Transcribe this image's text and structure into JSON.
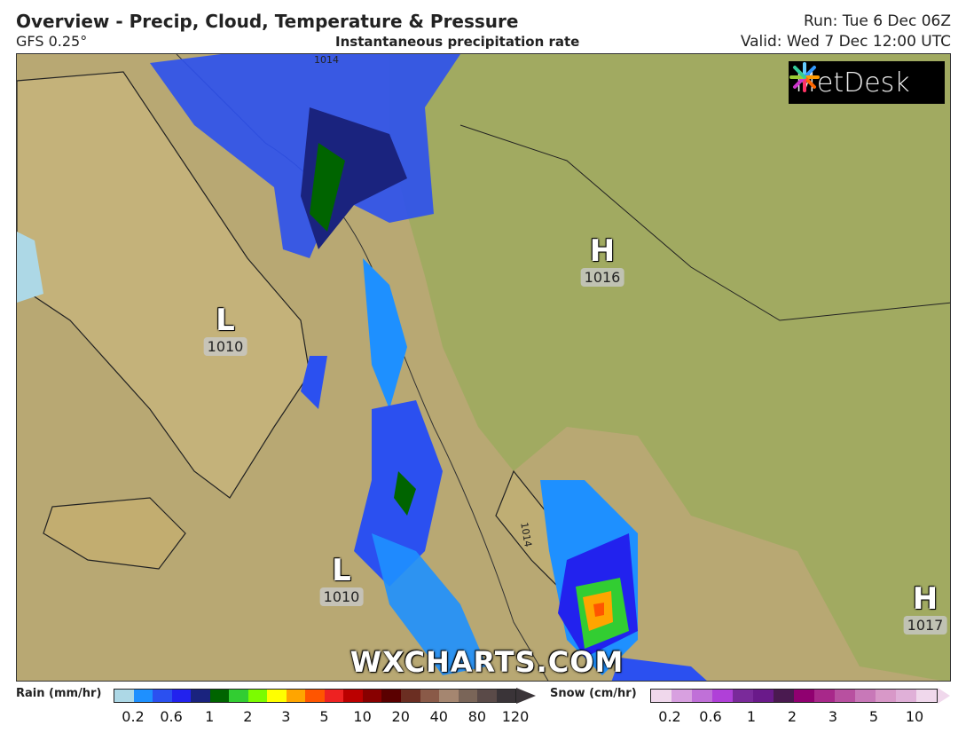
{
  "header": {
    "title": "Overview - Precip, Cloud, Temperature & Pressure",
    "model": "GFS 0.25°",
    "subtitle": "Instantaneous precipitation rate",
    "run": "Run: Tue 6 Dec 06Z",
    "valid": "Valid: Wed 7 Dec 12:00 UTC"
  },
  "map": {
    "pressure_centres": [
      {
        "type": "H",
        "value": "1016"
      },
      {
        "type": "L",
        "value": "1010"
      },
      {
        "type": "L",
        "value": "1010"
      },
      {
        "type": "H",
        "value": "1017"
      }
    ],
    "isobar_labels": [
      "1014",
      "1014"
    ],
    "logo": "MetDesk",
    "watermark": "WXCHARTS.COM"
  },
  "legend": {
    "rain": {
      "label": "Rain (mm/hr)",
      "ticks": [
        "0.2",
        "0.6",
        "1",
        "2",
        "3",
        "5",
        "10",
        "20",
        "40",
        "80",
        "120"
      ],
      "colors": [
        "#add8e6",
        "#1e90ff",
        "#2b50f0",
        "#2222ee",
        "#1a237e",
        "#006400",
        "#32cd32",
        "#7cfc00",
        "#ffff00",
        "#ffa500",
        "#ff5500",
        "#ee2222",
        "#bb0000",
        "#880000",
        "#5a0000",
        "#6b2e22",
        "#8a5a48",
        "#a58670",
        "#7a6558",
        "#5a4a48",
        "#3a3438"
      ]
    },
    "snow": {
      "label": "Snow (cm/hr)",
      "ticks": [
        "0.2",
        "0.6",
        "1",
        "2",
        "3",
        "5",
        "10"
      ],
      "colors": [
        "#f0d8ec",
        "#d8a0e0",
        "#c070d8",
        "#b040d8",
        "#7a2a9a",
        "#6a1a8a",
        "#4a1a50",
        "#900070",
        "#a8288a",
        "#b850a0",
        "#c878b8",
        "#d898c8",
        "#e0b0d8",
        "#f0d8ec"
      ]
    }
  }
}
